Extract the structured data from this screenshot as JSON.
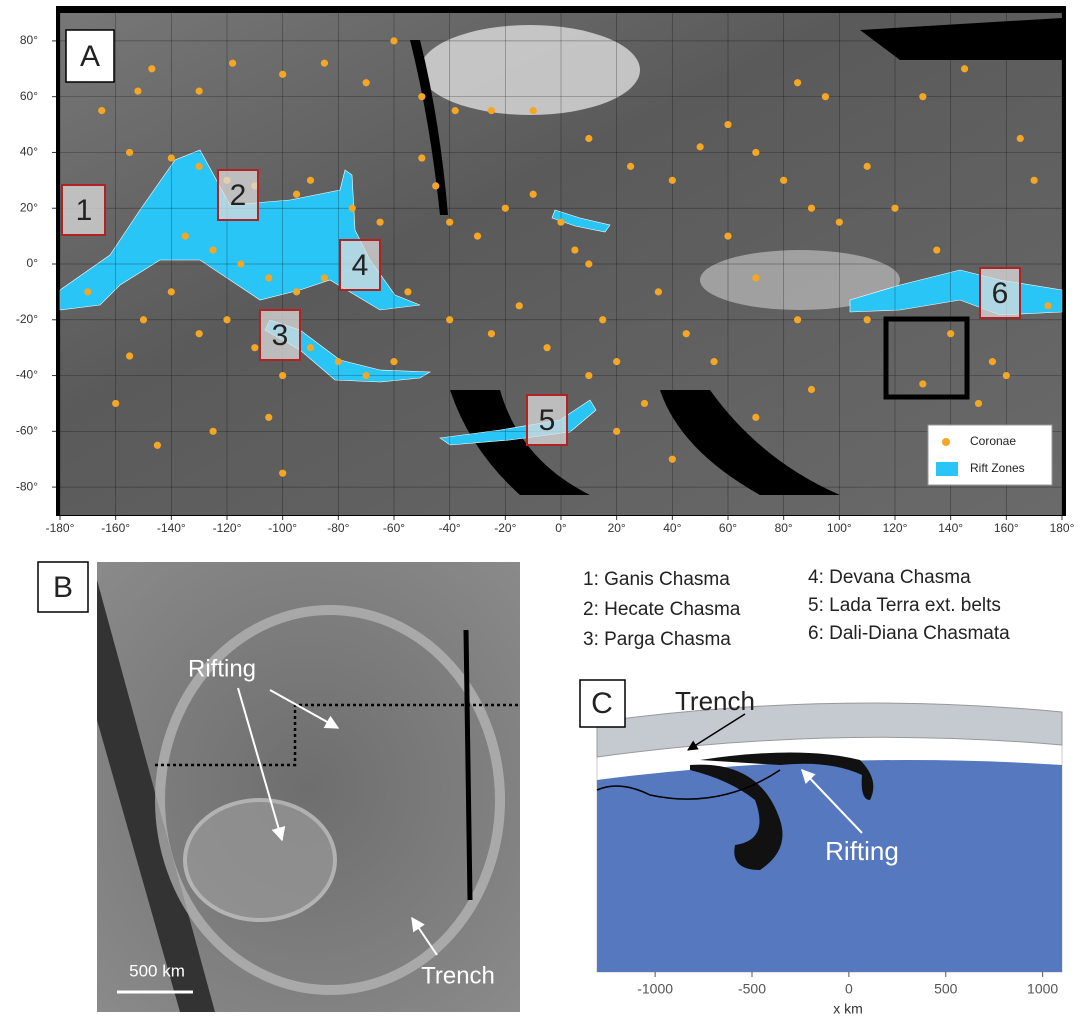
{
  "chart_data": {
    "type": "scatter",
    "panel": "A",
    "xlim": [
      -180,
      180
    ],
    "ylim": [
      -90,
      90
    ],
    "grid": true,
    "legend": "lower right",
    "xticks": [
      {
        "value": -180,
        "label": "-180°"
      },
      {
        "value": -160,
        "label": "-160°"
      },
      {
        "value": -140,
        "label": "-140°"
      },
      {
        "value": -120,
        "label": "-120°"
      },
      {
        "value": -100,
        "label": "-100°"
      },
      {
        "value": -80,
        "label": "-80°"
      },
      {
        "value": -60,
        "label": "-60°"
      },
      {
        "value": -40,
        "label": "-40°"
      },
      {
        "value": -20,
        "label": "-20°"
      },
      {
        "value": 0,
        "label": "0°"
      },
      {
        "value": 20,
        "label": "20°"
      },
      {
        "value": 40,
        "label": "40°"
      },
      {
        "value": 60,
        "label": "60°"
      },
      {
        "value": 80,
        "label": "80°"
      },
      {
        "value": 100,
        "label": "100°"
      },
      {
        "value": 120,
        "label": "120°"
      },
      {
        "value": 140,
        "label": "140°"
      },
      {
        "value": 160,
        "label": "160°"
      },
      {
        "value": 180,
        "label": "180°"
      }
    ],
    "yticks": [
      {
        "value": 80,
        "label": "80°"
      },
      {
        "value": 60,
        "label": "60°"
      },
      {
        "value": 40,
        "label": "40°"
      },
      {
        "value": 20,
        "label": "20°"
      },
      {
        "value": 0,
        "label": "0°"
      },
      {
        "value": -20,
        "label": "-20°"
      },
      {
        "value": -40,
        "label": "-40°"
      },
      {
        "value": -60,
        "label": "-60°"
      },
      {
        "value": -80,
        "label": "-80°"
      }
    ],
    "series": [
      {
        "name": "Coronae",
        "color": "#f5a623",
        "x": [
          -152,
          -165,
          -147,
          -130,
          -118,
          -100,
          -85,
          -60,
          -70,
          -50,
          -38,
          -25,
          -155,
          -140,
          -130,
          -120,
          -110,
          -95,
          -90,
          -75,
          -65,
          -50,
          -45,
          -40,
          -30,
          -20,
          -10,
          0,
          5,
          10,
          -135,
          -125,
          -115,
          -105,
          -95,
          -85,
          -140,
          -150,
          -130,
          -120,
          -110,
          -100,
          -90,
          -80,
          -70,
          -60,
          -105,
          -125,
          -145,
          -160,
          -155,
          -170,
          -55,
          -40,
          -25,
          -15,
          -5,
          10,
          15,
          20,
          30,
          35,
          45,
          55,
          40,
          50,
          60,
          70,
          80,
          90,
          100,
          110,
          95,
          85,
          130,
          145,
          165,
          170,
          175,
          160,
          150,
          130,
          165,
          175,
          -100,
          20,
          40,
          70,
          90,
          110,
          120,
          135,
          140,
          155,
          60,
          70,
          85,
          25,
          -10,
          10
        ],
        "y": [
          62,
          55,
          70,
          62,
          72,
          68,
          72,
          80,
          65,
          60,
          55,
          55,
          40,
          38,
          35,
          30,
          28,
          25,
          30,
          20,
          15,
          38,
          28,
          15,
          10,
          20,
          25,
          15,
          5,
          0,
          10,
          5,
          0,
          -5,
          -10,
          -5,
          -10,
          -20,
          -25,
          -20,
          -30,
          -40,
          -30,
          -35,
          -40,
          -35,
          -55,
          -60,
          -65,
          -50,
          -33,
          -10,
          -10,
          -20,
          -25,
          -15,
          -30,
          -40,
          -20,
          -35,
          -50,
          -10,
          -25,
          -35,
          30,
          42,
          50,
          40,
          30,
          20,
          15,
          35,
          60,
          65,
          60,
          70,
          45,
          30,
          -15,
          -40,
          -50,
          -43,
          -60,
          -75,
          -75,
          -60,
          -70,
          -55,
          -45,
          -20,
          20,
          5,
          -25,
          -35,
          10,
          -5,
          -20,
          35,
          55,
          45
        ]
      },
      {
        "name": "Rift Zones",
        "color": "#29c5f6"
      }
    ]
  },
  "panel_labels": [
    "A",
    "B",
    "C"
  ],
  "box_labels": [
    "1",
    "2",
    "3",
    "4",
    "5",
    "6"
  ],
  "key": [
    "1: Ganis Chasma",
    "2: Hecate Chasma",
    "3: Parga Chasma",
    "4: Devana Chasma",
    "5: Lada Terra ext. belts",
    "6: Dali-Diana Chasmata"
  ],
  "panel_b": {
    "annotations": [
      "Rifting",
      "Trench"
    ],
    "scale": "500 km"
  },
  "panel_c": {
    "annotations": [
      "Trench",
      "Rifting"
    ],
    "xlabel": "x km",
    "xlim": [
      -1300,
      1100
    ],
    "xticks": [
      -1000,
      -500,
      0,
      500,
      1000
    ]
  }
}
